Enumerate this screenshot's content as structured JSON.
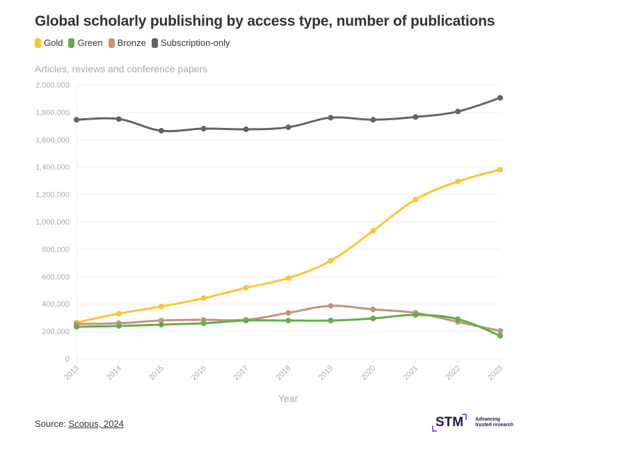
{
  "title": "Global scholarly publishing by access type, number of publications",
  "subtitle": "Articles, reviews and conference papers",
  "source": {
    "label": "Source: ",
    "link_text": "Scopus, 2024"
  },
  "logo": {
    "text": "STM",
    "tagline_1": "Advancing",
    "tagline_2": "trusted research"
  },
  "colors": {
    "gold": "#fcc631",
    "green": "#65ab4a",
    "bronze": "#c09580",
    "subscription": "#646464",
    "grid": "#efefef",
    "axis_text": "#aaaaaa"
  },
  "chart_data": {
    "type": "line",
    "title": "Global scholarly publishing by access type, number of publications",
    "subtitle": "Articles, reviews and conference papers",
    "xlabel": "Year",
    "ylabel": "",
    "x": [
      "2013",
      "2014",
      "2015",
      "2016",
      "2017",
      "2018",
      "2019",
      "2020",
      "2021",
      "2022",
      "2023"
    ],
    "ylim": [
      0,
      2000000
    ],
    "yticks": [
      0,
      200000,
      400000,
      600000,
      800000,
      1000000,
      1200000,
      1400000,
      1600000,
      1800000,
      2000000
    ],
    "ytick_labels": [
      "0",
      "200,000",
      "400,000",
      "600,000",
      "800,000",
      "1,000,000",
      "1,200,000",
      "1,400,000",
      "1,600,000",
      "1,800,000",
      "2,000,000"
    ],
    "grid": true,
    "legend_position": "top-left",
    "series": [
      {
        "name": "Gold",
        "color": "#fcc631",
        "values": [
          264000,
          330000,
          381000,
          442000,
          518000,
          589000,
          716000,
          934000,
          1162000,
          1294000,
          1381000
        ]
      },
      {
        "name": "Green",
        "color": "#65ab4a",
        "values": [
          233000,
          239000,
          249000,
          259000,
          279000,
          279000,
          279000,
          294000,
          320000,
          289000,
          168000
        ]
      },
      {
        "name": "Bronze",
        "color": "#c09580",
        "values": [
          254000,
          259000,
          279000,
          284000,
          284000,
          335000,
          386000,
          360000,
          335000,
          269000,
          203000
        ]
      },
      {
        "name": "Subscription-only",
        "color": "#646464",
        "values": [
          1745000,
          1750000,
          1665000,
          1680000,
          1675000,
          1690000,
          1760000,
          1745000,
          1765000,
          1805000,
          1905000
        ]
      }
    ]
  }
}
